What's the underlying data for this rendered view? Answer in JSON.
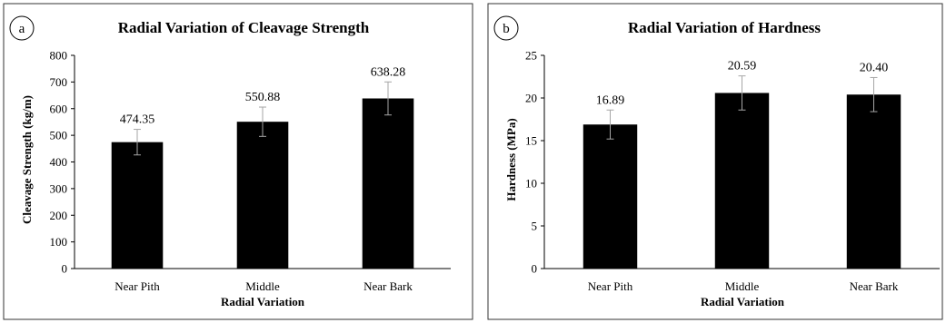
{
  "chart_data": [
    {
      "panel_label": "a",
      "type": "bar",
      "title": "Radial Variation of Cleavage Strength",
      "xlabel": "Radial Variation",
      "ylabel": "Cleavage Strength (kg/m)",
      "categories": [
        "Near Pith",
        "Middle",
        "Near Bark"
      ],
      "values": [
        474.35,
        550.88,
        638.28
      ],
      "data_labels": [
        "474.35",
        "550.88",
        "638.28"
      ],
      "error_bars": [
        48,
        55,
        62
      ],
      "ylim": [
        0,
        800
      ],
      "yticks": [
        0,
        100,
        200,
        300,
        400,
        500,
        600,
        700,
        800
      ],
      "grid": false,
      "bar_color": "#000000",
      "error_bar_color": "#a6a6a6"
    },
    {
      "panel_label": "b",
      "type": "bar",
      "title": "Radial Variation of Hardness",
      "xlabel": "Radial Variation",
      "ylabel": "Hardness (MPa)",
      "categories": [
        "Near Pith",
        "Middle",
        "Near Bark"
      ],
      "values": [
        16.89,
        20.59,
        20.4
      ],
      "data_labels": [
        "16.89",
        "20.59",
        "20.40"
      ],
      "error_bars": [
        1.7,
        2.0,
        2.0
      ],
      "ylim": [
        0,
        25
      ],
      "yticks": [
        0,
        5,
        10,
        15,
        20,
        25
      ],
      "grid": false,
      "bar_color": "#000000",
      "error_bar_color": "#a6a6a6"
    }
  ]
}
